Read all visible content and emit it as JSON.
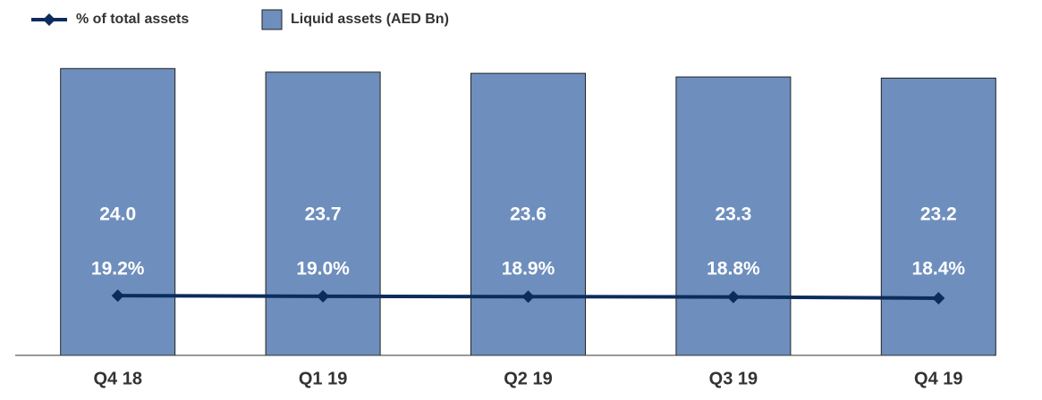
{
  "chart_data": {
    "type": "bar",
    "categories": [
      "Q4 18",
      "Q1 19",
      "Q2 19",
      "Q3 19",
      "Q4 19"
    ],
    "series": [
      {
        "name": "Liquid assets (AED Bn)",
        "type": "bar",
        "color": "#6e8fbd",
        "values": [
          24.0,
          23.7,
          23.6,
          23.3,
          23.2
        ],
        "value_labels": [
          "24.0",
          "23.7",
          "23.6",
          "23.3",
          "23.2"
        ]
      },
      {
        "name": "% of total assets",
        "type": "line",
        "axis": "y2",
        "color": "#0b2d5c",
        "values": [
          19.2,
          19.0,
          18.9,
          18.8,
          18.4
        ],
        "value_labels": [
          "19.2%",
          "19.0%",
          "18.9%",
          "18.8%",
          "18.4%"
        ]
      }
    ],
    "ylim": [
      0,
      26
    ],
    "y2lim": [
      0,
      100
    ]
  }
}
